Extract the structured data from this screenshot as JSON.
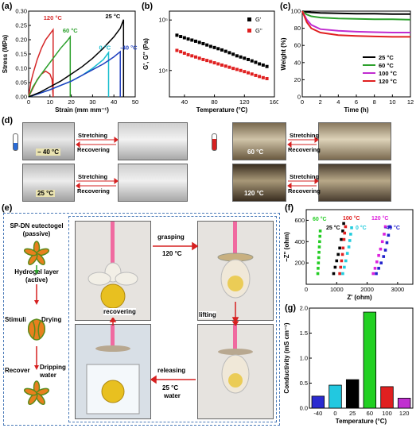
{
  "panels": {
    "a": "(a)",
    "b": "(b)",
    "c": "(c)",
    "d": "(d)",
    "e": "(e)",
    "f": "(f)",
    "g": "(g)"
  },
  "chart_data": [
    {
      "id": "a",
      "type": "line",
      "xlabel": "Strain (mm mm⁻¹)",
      "ylabel": "Stress (MPa)",
      "xlim": [
        0,
        50
      ],
      "ylim": [
        0,
        0.3
      ],
      "xticks": [
        "0",
        "10",
        "20",
        "30",
        "40",
        "50"
      ],
      "yticks": [
        "0.00",
        "0.05",
        "0.10",
        "0.15",
        "0.20",
        "0.25",
        "0.30"
      ],
      "series": [
        {
          "name": "120 °C",
          "color": "#d62728",
          "x": [
            0,
            1,
            2,
            4,
            6,
            8,
            10,
            11.5,
            11.5,
            11,
            10,
            8,
            6,
            4,
            2,
            0
          ],
          "y": [
            0,
            0.05,
            0.08,
            0.13,
            0.17,
            0.2,
            0.22,
            0.235,
            0,
            0.06,
            0.08,
            0.09,
            0.08,
            0.06,
            0.03,
            0
          ]
        },
        {
          "name": "60 °C",
          "color": "#2ca02c",
          "x": [
            0,
            2,
            5,
            8,
            12,
            15,
            18,
            19.5,
            19.5
          ],
          "y": [
            0,
            0.035,
            0.07,
            0.1,
            0.14,
            0.17,
            0.195,
            0.21,
            0
          ]
        },
        {
          "name": "0 °C",
          "color": "#17becf",
          "x": [
            0,
            5,
            10,
            15,
            20,
            25,
            30,
            35,
            37.5,
            37.5
          ],
          "y": [
            0,
            0.012,
            0.025,
            0.04,
            0.055,
            0.075,
            0.1,
            0.13,
            0.155,
            0
          ]
        },
        {
          "name": "-40 °C",
          "color": "#1f3fbf",
          "x": [
            0,
            5,
            10,
            15,
            20,
            25,
            30,
            35,
            40,
            43,
            43
          ],
          "y": [
            0,
            0.012,
            0.025,
            0.04,
            0.055,
            0.075,
            0.095,
            0.115,
            0.14,
            0.158,
            0
          ]
        },
        {
          "name": "25 °C",
          "color": "#000000",
          "x": [
            0,
            5,
            10,
            15,
            20,
            25,
            30,
            35,
            40,
            43,
            44.5,
            44.5
          ],
          "y": [
            0,
            0.015,
            0.035,
            0.055,
            0.08,
            0.105,
            0.135,
            0.17,
            0.21,
            0.24,
            0.27,
            0
          ]
        }
      ]
    },
    {
      "id": "b",
      "type": "scatter",
      "xlabel": "Temperature (°C)",
      "ylabel": "G', G'' (Pa)",
      "xlim": [
        20,
        160
      ],
      "log_y": true,
      "ylim": [
        3000,
        150000
      ],
      "xticks": [
        "40",
        "80",
        "120",
        "160"
      ],
      "yticks": [
        "10⁴",
        "10⁵"
      ],
      "series": [
        {
          "name": "G'",
          "color": "#000000",
          "x": [
            30,
            35,
            40,
            45,
            50,
            55,
            60,
            65,
            70,
            75,
            80,
            85,
            90,
            95,
            100,
            105,
            110,
            115,
            120,
            125,
            130,
            135,
            140,
            145,
            150
          ],
          "y": [
            50000,
            47000,
            44500,
            42000,
            40000,
            38000,
            36000,
            34000,
            32000,
            30000,
            28500,
            27000,
            25500,
            24000,
            22500,
            21000,
            19500,
            18500,
            17500,
            16500,
            15500,
            14500,
            13500,
            12800,
            12000
          ]
        },
        {
          "name": "G''",
          "color": "#e02020",
          "x": [
            30,
            35,
            40,
            45,
            50,
            55,
            60,
            65,
            70,
            75,
            80,
            85,
            90,
            95,
            100,
            105,
            110,
            115,
            120,
            125,
            130,
            135,
            140,
            145,
            150
          ],
          "y": [
            25000,
            23500,
            22000,
            20500,
            19500,
            18500,
            17500,
            16500,
            15800,
            15000,
            14200,
            13500,
            12800,
            12200,
            11600,
            11000,
            10500,
            10000,
            9500,
            9000,
            8500,
            8000,
            7600,
            7200,
            6900
          ]
        }
      ]
    },
    {
      "id": "c",
      "type": "line",
      "xlabel": "Time (h)",
      "ylabel": "Weight (%)",
      "xlim": [
        0,
        12
      ],
      "ylim": [
        0,
        100
      ],
      "xticks": [
        "0",
        "2",
        "4",
        "6",
        "8",
        "10",
        "12"
      ],
      "yticks": [
        "0",
        "20",
        "40",
        "60",
        "80",
        "100"
      ],
      "series": [
        {
          "name": "25 °C",
          "color": "#000000",
          "x": [
            0,
            0.5,
            1,
            2,
            4,
            6,
            8,
            10,
            12
          ],
          "y": [
            100,
            99,
            98.5,
            98,
            97.5,
            97,
            97,
            96.5,
            96.5
          ]
        },
        {
          "name": "60 °C",
          "color": "#2ca02c",
          "x": [
            0,
            0.5,
            1,
            2,
            4,
            6,
            8,
            10,
            12
          ],
          "y": [
            100,
            96,
            94,
            92.5,
            91.5,
            91,
            90.5,
            90.5,
            90
          ]
        },
        {
          "name": "100 °C",
          "color": "#c02cd0",
          "x": [
            0,
            0.5,
            1,
            2,
            4,
            6,
            8,
            10,
            12
          ],
          "y": [
            100,
            90,
            84,
            79,
            77,
            76,
            75.5,
            75,
            75
          ]
        },
        {
          "name": "120 °C",
          "color": "#e02020",
          "x": [
            0,
            0.5,
            1,
            2,
            4,
            6,
            8,
            10,
            12
          ],
          "y": [
            100,
            87,
            80,
            75,
            72,
            71,
            70.5,
            70,
            70
          ]
        }
      ]
    },
    {
      "id": "f",
      "type": "scatter",
      "xlabel": "Z' (ohm)",
      "ylabel": "−Z'' (ohm)",
      "xlim": [
        0,
        3500
      ],
      "ylim": [
        0,
        700
      ],
      "xticks": [
        "0",
        "1000",
        "2000",
        "3000"
      ],
      "yticks": [
        "200",
        "400",
        "600"
      ],
      "series": [
        {
          "name": "60 °C",
          "color": "#22cc22",
          "x": [
            380,
            390,
            400,
            410,
            420,
            430,
            440,
            450,
            460
          ],
          "y": [
            100,
            150,
            200,
            250,
            300,
            350,
            400,
            450,
            500
          ]
        },
        {
          "name": "25 °C",
          "color": "#000000",
          "x": [
            900,
            950,
            1000,
            1050,
            1100,
            1150,
            1200,
            1230
          ],
          "y": [
            100,
            160,
            220,
            280,
            340,
            420,
            500,
            570
          ]
        },
        {
          "name": "100 °C",
          "color": "#e02020",
          "x": [
            1100,
            1130,
            1160,
            1190,
            1210,
            1240,
            1260,
            1290
          ],
          "y": [
            100,
            160,
            220,
            280,
            340,
            420,
            480,
            540
          ]
        },
        {
          "name": "0 °C",
          "color": "#22ccdd",
          "x": [
            1200,
            1250,
            1300,
            1350,
            1400,
            1430,
            1460,
            1490
          ],
          "y": [
            100,
            160,
            220,
            290,
            350,
            410,
            470,
            530
          ]
        },
        {
          "name": "120 °C",
          "color": "#dd22dd",
          "x": [
            2200,
            2260,
            2320,
            2380,
            2440,
            2500,
            2560,
            2600
          ],
          "y": [
            100,
            150,
            210,
            270,
            330,
            400,
            470,
            540
          ]
        },
        {
          "name": "-40 °C",
          "color": "#2222cc",
          "x": [
            2300,
            2380,
            2460,
            2540,
            2600,
            2650,
            2700,
            2750
          ],
          "y": [
            100,
            150,
            200,
            260,
            320,
            390,
            460,
            540
          ]
        }
      ]
    },
    {
      "id": "g",
      "type": "bar",
      "xlabel": "Temperature (°C)",
      "ylabel": "Conductivity (mS cm⁻¹)",
      "ylim": [
        0,
        2.0
      ],
      "yticks": [
        "0.0",
        "0.5",
        "1.0",
        "1.5",
        "2.0"
      ],
      "categories": [
        "-40",
        "0",
        "25",
        "60",
        "100",
        "120"
      ],
      "values": [
        0.24,
        0.46,
        0.57,
        1.92,
        0.43,
        0.2
      ],
      "colors": [
        "#2a2ad0",
        "#22c8e0",
        "#000000",
        "#22d022",
        "#e02020",
        "#c030d0"
      ]
    }
  ],
  "panel_d": {
    "temps": [
      "− 40 °C",
      "60 °C",
      "25 °C",
      "120 °C"
    ],
    "stretching": "Stretching",
    "recovering": "Recovering"
  },
  "panel_e": {
    "schematic": [
      "SP-DN eutectogel",
      "(passive)",
      "Hydrogel layer",
      "(active)",
      "Stimuli",
      "Drying",
      "Recover",
      "Dripping",
      "water"
    ],
    "grasping": "grasping",
    "grasp_temp": "120 °C",
    "lifting": "lifting",
    "recovering": "recovering",
    "releasing": "releasing",
    "release_temp": "25 °C",
    "water": "water"
  }
}
